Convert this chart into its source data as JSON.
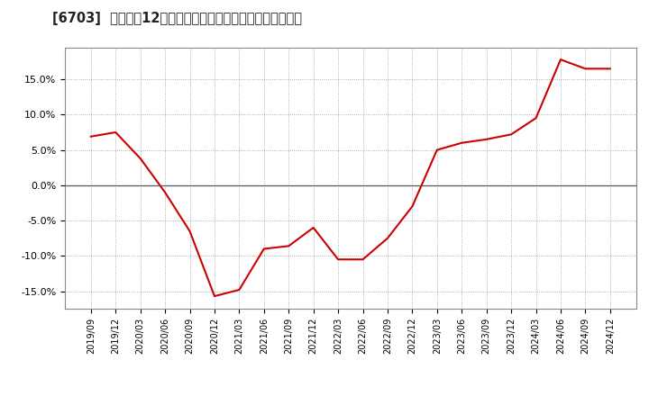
{
  "title": "[6703]  売上高の12か月移動合計の対前年同期増減率の推移",
  "line_color": "#cc0000",
  "line_width": 1.5,
  "background_color": "#ffffff",
  "plot_bg_color": "#ffffff",
  "grid_color": "#999999",
  "zero_line_color": "#555555",
  "ylim": [
    -0.175,
    0.195
  ],
  "yticks": [
    -0.15,
    -0.1,
    -0.05,
    0.0,
    0.05,
    0.1,
    0.15
  ],
  "ytick_labels": [
    "-15.0%",
    "-10.0%",
    "-5.0%",
    "0.0%",
    "5.0%",
    "10.0%",
    "15.0%"
  ],
  "dates": [
    "2019/09",
    "2019/12",
    "2020/03",
    "2020/06",
    "2020/09",
    "2020/12",
    "2021/03",
    "2021/06",
    "2021/09",
    "2021/12",
    "2022/03",
    "2022/06",
    "2022/09",
    "2022/12",
    "2023/03",
    "2023/06",
    "2023/09",
    "2023/12",
    "2024/03",
    "2024/06",
    "2024/09",
    "2024/12"
  ],
  "values": [
    0.069,
    0.075,
    0.038,
    -0.01,
    -0.065,
    -0.157,
    -0.148,
    -0.09,
    -0.086,
    -0.06,
    -0.105,
    -0.105,
    -0.075,
    -0.03,
    0.05,
    0.06,
    0.065,
    0.072,
    0.095,
    0.178,
    0.165,
    0.165
  ]
}
